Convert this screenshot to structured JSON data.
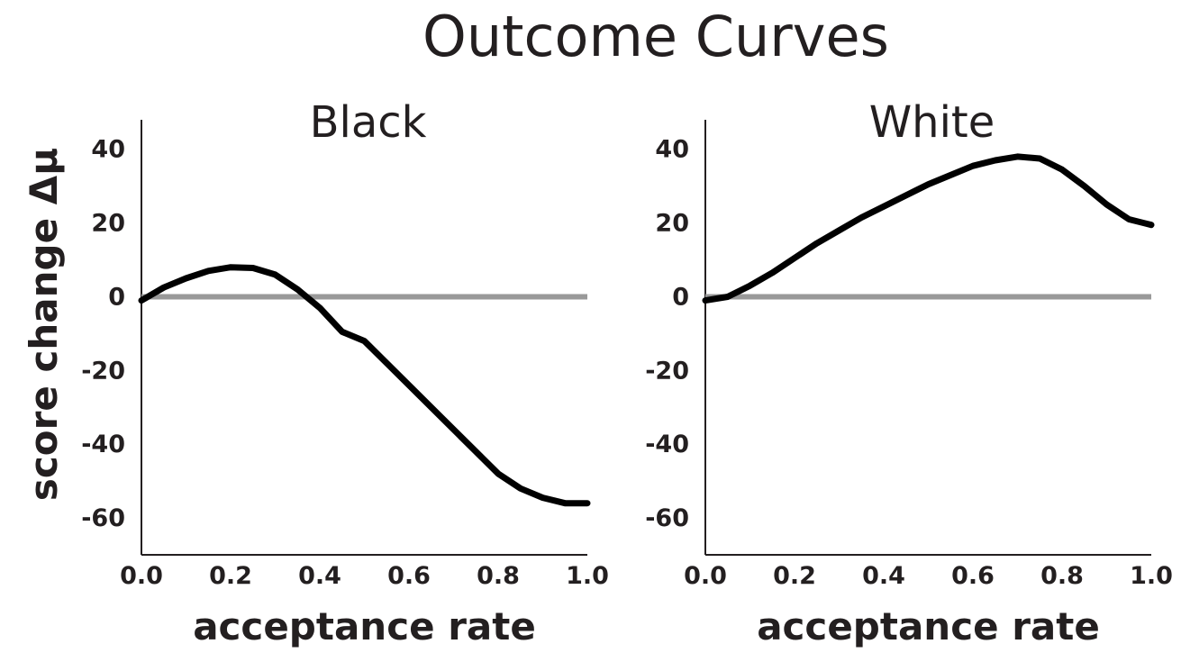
{
  "chart_data": {
    "type": "line",
    "suptitle": "Outcome Curves",
    "ylabel": "score change Δμ",
    "xlabel": "acceptance rate",
    "xlim": [
      0,
      1
    ],
    "ylim": [
      -70,
      48
    ],
    "xticks": [
      "0.0",
      "0.2",
      "0.4",
      "0.6",
      "0.8",
      "1.0"
    ],
    "yticks": [
      "40",
      "20",
      "0",
      "-20",
      "-40",
      "-60"
    ],
    "grid": false,
    "reference_line": {
      "y": 0,
      "color": "#999999"
    },
    "line_color": "#000000",
    "panels": [
      {
        "title": "Black",
        "x": [
          0.0,
          0.05,
          0.1,
          0.15,
          0.2,
          0.25,
          0.3,
          0.35,
          0.4,
          0.45,
          0.5,
          0.55,
          0.6,
          0.65,
          0.7,
          0.75,
          0.8,
          0.85,
          0.9,
          0.95,
          1.0
        ],
        "y": [
          -1,
          2.5,
          5,
          7,
          8,
          7.8,
          6,
          2,
          -3,
          -9.5,
          -12,
          -18,
          -24,
          -30,
          -36,
          -42,
          -48,
          -52,
          -54.5,
          -56,
          -56
        ]
      },
      {
        "title": "White",
        "x": [
          0.0,
          0.05,
          0.1,
          0.15,
          0.2,
          0.25,
          0.3,
          0.35,
          0.4,
          0.45,
          0.5,
          0.55,
          0.6,
          0.65,
          0.7,
          0.75,
          0.8,
          0.85,
          0.9,
          0.95,
          1.0
        ],
        "y": [
          -1,
          0,
          3,
          6.5,
          10.5,
          14.5,
          18,
          21.5,
          24.5,
          27.5,
          30.5,
          33,
          35.5,
          37,
          38,
          37.5,
          34.5,
          30,
          25,
          21,
          19.5
        ]
      }
    ]
  }
}
